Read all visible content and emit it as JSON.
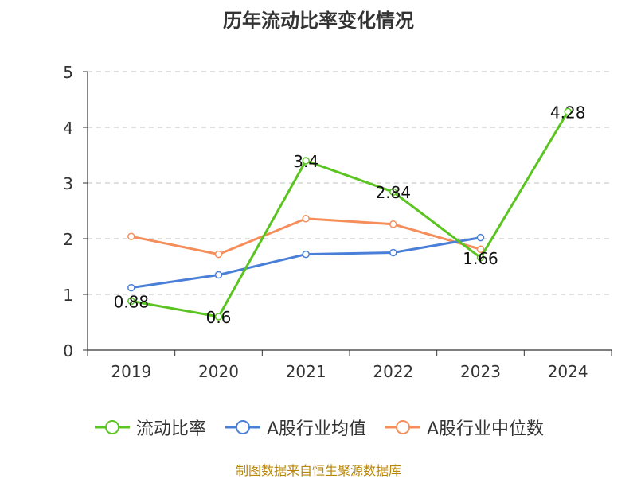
{
  "chart_data": {
    "type": "line",
    "title": "历年流动比率变化情况",
    "categories": [
      "2019",
      "2020",
      "2021",
      "2022",
      "2023",
      "2024"
    ],
    "ylim": [
      0,
      5
    ],
    "yticks": [
      0,
      1,
      2,
      3,
      4,
      5
    ],
    "grid": true,
    "legend_position": "bottom",
    "series": [
      {
        "name": "流动比率",
        "color": "#5ac421",
        "values": [
          0.88,
          0.6,
          3.4,
          2.84,
          1.66,
          4.28
        ],
        "labels": [
          "0.88",
          "0.6",
          "3.4",
          "2.84",
          "1.66",
          "4.28"
        ]
      },
      {
        "name": "A股行业均值",
        "color": "#4a7fd8",
        "values": [
          1.12,
          1.35,
          1.72,
          1.75,
          2.02,
          null
        ]
      },
      {
        "name": "A股行业中位数",
        "color": "#f58e5b",
        "values": [
          2.04,
          1.72,
          2.36,
          2.26,
          1.81,
          null
        ]
      }
    ]
  },
  "source_note": "制图数据来自恒生聚源数据库"
}
